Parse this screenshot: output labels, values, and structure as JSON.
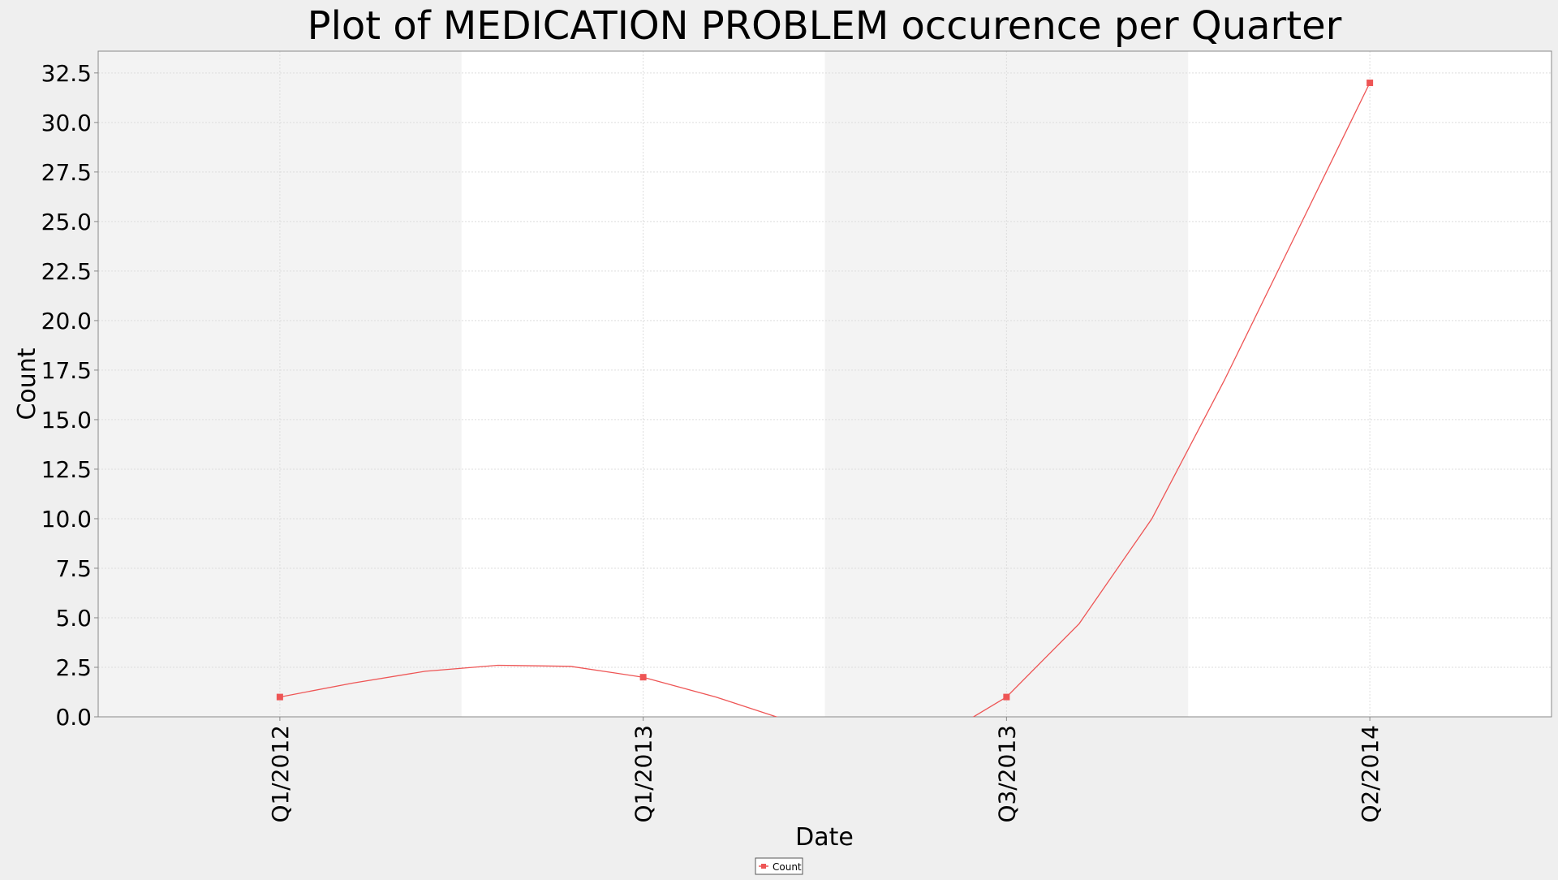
{
  "chart_data": {
    "type": "line",
    "title": "Plot of MEDICATION PROBLEM occurence per Quarter",
    "xlabel": "Date",
    "ylabel": "Count",
    "x_tick_labels": [
      "Q1/2012",
      "Q1/2013",
      "Q3/2013",
      "Q2/2014"
    ],
    "ylim": [
      0,
      33.6
    ],
    "y_ticks": [
      0,
      2.5,
      5,
      7.5,
      10,
      12.5,
      15,
      17.5,
      20,
      22.5,
      25,
      27.5,
      30,
      32.5
    ],
    "y_tick_labels": [
      "0.0",
      "2.5",
      "5.0",
      "7.5",
      "10.0",
      "12.5",
      "15.0",
      "17.5",
      "20.0",
      "22.5",
      "25.0",
      "27.5",
      "30.0",
      "32.5"
    ],
    "grid": true,
    "legend_position": "bottom-center",
    "series": [
      {
        "name": "Count",
        "color": "#ee5555",
        "markers": [
          {
            "x": "Q1/2012",
            "y": 1.0
          },
          {
            "x": "Q1/2013",
            "y": 2.0
          },
          {
            "x": "Q3/2013",
            "y": 1.0
          },
          {
            "x": "Q2/2014",
            "y": 32.0
          }
        ],
        "curve": [
          1.0,
          1.7,
          2.3,
          2.6,
          2.55,
          2.0,
          1.0,
          -0.2,
          -1.5,
          -1.2,
          1.0,
          4.7,
          10.0,
          17.0,
          24.5,
          32.0
        ]
      }
    ],
    "colors": {
      "band_shaded": "#f3f3f3",
      "band_plain": "#ffffff",
      "gridline": "#dddddd",
      "axis": "#888888"
    }
  }
}
